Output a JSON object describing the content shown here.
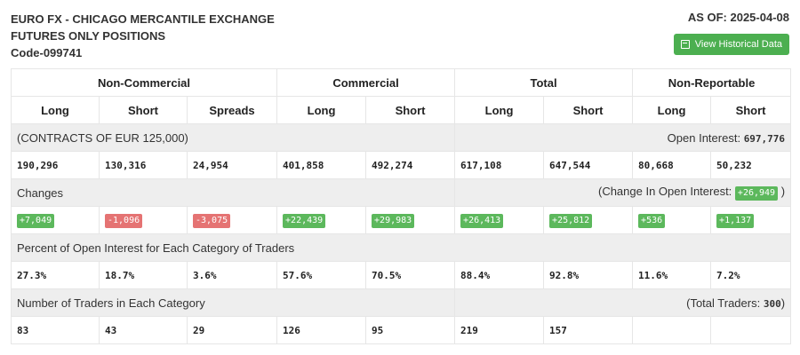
{
  "header": {
    "title_line1": "EURO FX - CHICAGO MERCANTILE EXCHANGE",
    "title_line2": "FUTURES ONLY POSITIONS",
    "code": "Code-099741",
    "as_of": "AS OF: 2025-04-08",
    "view_button": "View Historical Data"
  },
  "groups": {
    "non_commercial": "Non-Commercial",
    "commercial": "Commercial",
    "total": "Total",
    "non_reportable": "Non-Reportable"
  },
  "columns": [
    "Long",
    "Short",
    "Spreads",
    "Long",
    "Short",
    "Long",
    "Short",
    "Long",
    "Short"
  ],
  "contracts": {
    "label": "(CONTRACTS OF EUR 125,000)",
    "open_interest_label": "Open Interest:",
    "open_interest_value": "697,776",
    "values": [
      "190,296",
      "130,316",
      "24,954",
      "401,858",
      "492,274",
      "617,108",
      "647,544",
      "80,668",
      "50,232"
    ]
  },
  "changes": {
    "label": "Changes",
    "oi_prefix": "(Change In Open Interest:",
    "oi_value": "+26,949",
    "oi_suffix": ")",
    "values": [
      "+7,049",
      "-1,096",
      "-3,075",
      "+22,439",
      "+29,983",
      "+26,413",
      "+25,812",
      "+536",
      "+1,137"
    ]
  },
  "percent": {
    "label": "Percent of Open Interest for Each Category of Traders",
    "values": [
      "27.3%",
      "18.7%",
      "3.6%",
      "57.6%",
      "70.5%",
      "88.4%",
      "92.8%",
      "11.6%",
      "7.2%"
    ]
  },
  "traders": {
    "label": "Number of Traders in Each Category",
    "total_prefix": "(Total Traders:",
    "total_value": "300",
    "total_suffix": ")",
    "values": [
      "83",
      "43",
      "29",
      "126",
      "95",
      "219",
      "157",
      "",
      ""
    ]
  },
  "colors": {
    "positive": "#5cb85c",
    "negative": "#e57373",
    "button": "#4caf50",
    "section_bg": "#eeeeee"
  }
}
